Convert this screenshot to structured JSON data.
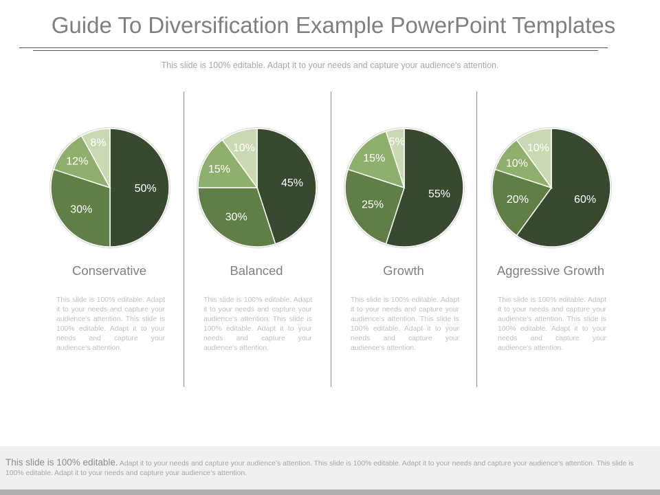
{
  "title": "Guide To Diversification Example PowerPoint Templates",
  "subtitle": "This slide is 100% editable. Adapt it to your needs and capture your audience's attention.",
  "colors": {
    "slice_1": "#374a2f",
    "slice_2": "#5f7f46",
    "slice_3": "#8faf6c",
    "slice_4": "#cbd8b4",
    "slice_border": "#ffffff",
    "pie_ring": "#d9d9d9"
  },
  "chart_data": [
    {
      "type": "pie",
      "title": "Conservative",
      "values": [
        50,
        30,
        12,
        8
      ],
      "labels": [
        "50%",
        "30%",
        "12%",
        "8%"
      ],
      "description": "This slide is 100% editable. Adapt it to your needs and capture your audience's attention. This slide is 100% editable. Adapt it to your needs and capture your audience's attention."
    },
    {
      "type": "pie",
      "title": "Balanced",
      "values": [
        45,
        30,
        15,
        10
      ],
      "labels": [
        "45%",
        "30%",
        "15%",
        "10%"
      ],
      "description": "This slide is 100% editable. Adapt it to your needs and capture your audience's attention. This slide is 100% editable. Adapt it to your needs and capture your audience's attention."
    },
    {
      "type": "pie",
      "title": "Growth",
      "values": [
        55,
        25,
        15,
        5
      ],
      "labels": [
        "55%",
        "25%",
        "15%",
        "5%"
      ],
      "description": "This slide is 100% editable. Adapt it to your needs and capture your audience's attention. This slide is 100% editable. Adapt it to your needs and capture your audience's attention."
    },
    {
      "type": "pie",
      "title": "Aggressive Growth",
      "values": [
        60,
        20,
        10,
        10
      ],
      "labels": [
        "60%",
        "20%",
        "10%",
        "10%"
      ],
      "description": "This slide is 100% editable. Adapt it to your needs and capture your audience's attention. This slide is 100% editable. Adapt it to your needs and capture your audience's attention."
    }
  ],
  "footer": {
    "lead": "This slide is 100% editable.",
    "text": " Adapt it to your needs and capture your audience’s attention. This slide is 100% editable. Adapt it to your needs and capture your audience’s attention. This slide is 100% editable. Adapt it to your needs and capture your audience’s attention."
  }
}
